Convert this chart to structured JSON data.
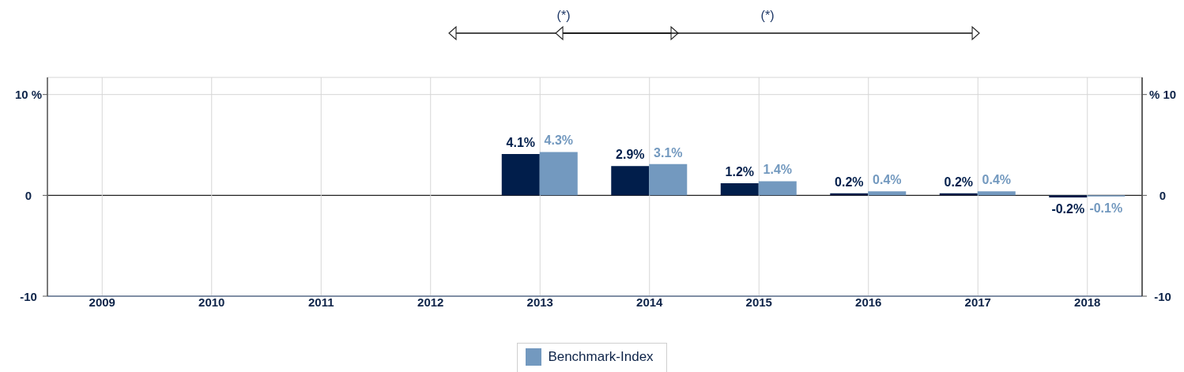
{
  "chart_data": {
    "type": "bar",
    "categories": [
      "2009",
      "2010",
      "2011",
      "2012",
      "2013",
      "2014",
      "2015",
      "2016",
      "2017",
      "2018"
    ],
    "series": [
      {
        "color": "#011e4b",
        "values": [
          null,
          null,
          null,
          null,
          4.1,
          2.9,
          1.2,
          0.2,
          0.2,
          -0.2
        ],
        "value_labels": [
          null,
          null,
          null,
          null,
          "4.1%",
          "2.9%",
          "1.2%",
          "0.2%",
          "0.2%",
          "-0.2%"
        ]
      },
      {
        "name": "Benchmark-Index",
        "color": "#7399bf",
        "values": [
          null,
          null,
          null,
          null,
          4.3,
          3.1,
          1.4,
          0.4,
          0.4,
          -0.1
        ],
        "value_labels": [
          null,
          null,
          null,
          null,
          "4.3%",
          "3.1%",
          "1.4%",
          "0.4%",
          "0.4%",
          "-0.1%"
        ]
      }
    ],
    "ylim": [
      -10,
      11.7
    ],
    "yticks": [
      {
        "value": 10,
        "label": "10 %"
      },
      0,
      -10
    ],
    "y2lim": [
      -10,
      11.7
    ],
    "y2ticks": [
      {
        "value": 10,
        "label": "% 10"
      },
      0,
      -10
    ],
    "grid": true,
    "legend": "bottom",
    "annotations": [
      "(*)",
      "(*)"
    ]
  }
}
